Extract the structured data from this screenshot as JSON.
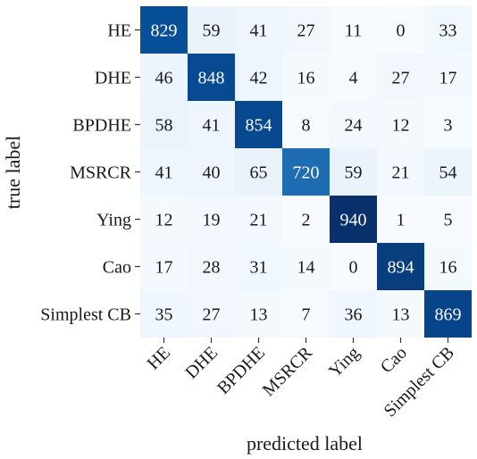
{
  "chart_data": {
    "type": "heatmap",
    "title": "",
    "xlabel": "predicted label",
    "ylabel": "true label",
    "x_categories": [
      "HE",
      "DHE",
      "BPDHE",
      "MSRCR",
      "Ying",
      "Cao",
      "Simplest CB"
    ],
    "y_categories": [
      "HE",
      "DHE",
      "BPDHE",
      "MSRCR",
      "Ying",
      "Cao",
      "Simplest CB"
    ],
    "values": [
      [
        829,
        59,
        41,
        27,
        11,
        0,
        33
      ],
      [
        46,
        848,
        42,
        16,
        4,
        27,
        17
      ],
      [
        58,
        41,
        854,
        8,
        24,
        12,
        3
      ],
      [
        41,
        40,
        65,
        720,
        59,
        21,
        54
      ],
      [
        12,
        19,
        21,
        2,
        940,
        1,
        5
      ],
      [
        17,
        28,
        31,
        14,
        0,
        894,
        16
      ],
      [
        35,
        27,
        13,
        7,
        36,
        13,
        869
      ]
    ],
    "colormap": "Blues",
    "color_low": "#f7fbff",
    "color_high": "#08306b",
    "colorbar": false
  }
}
